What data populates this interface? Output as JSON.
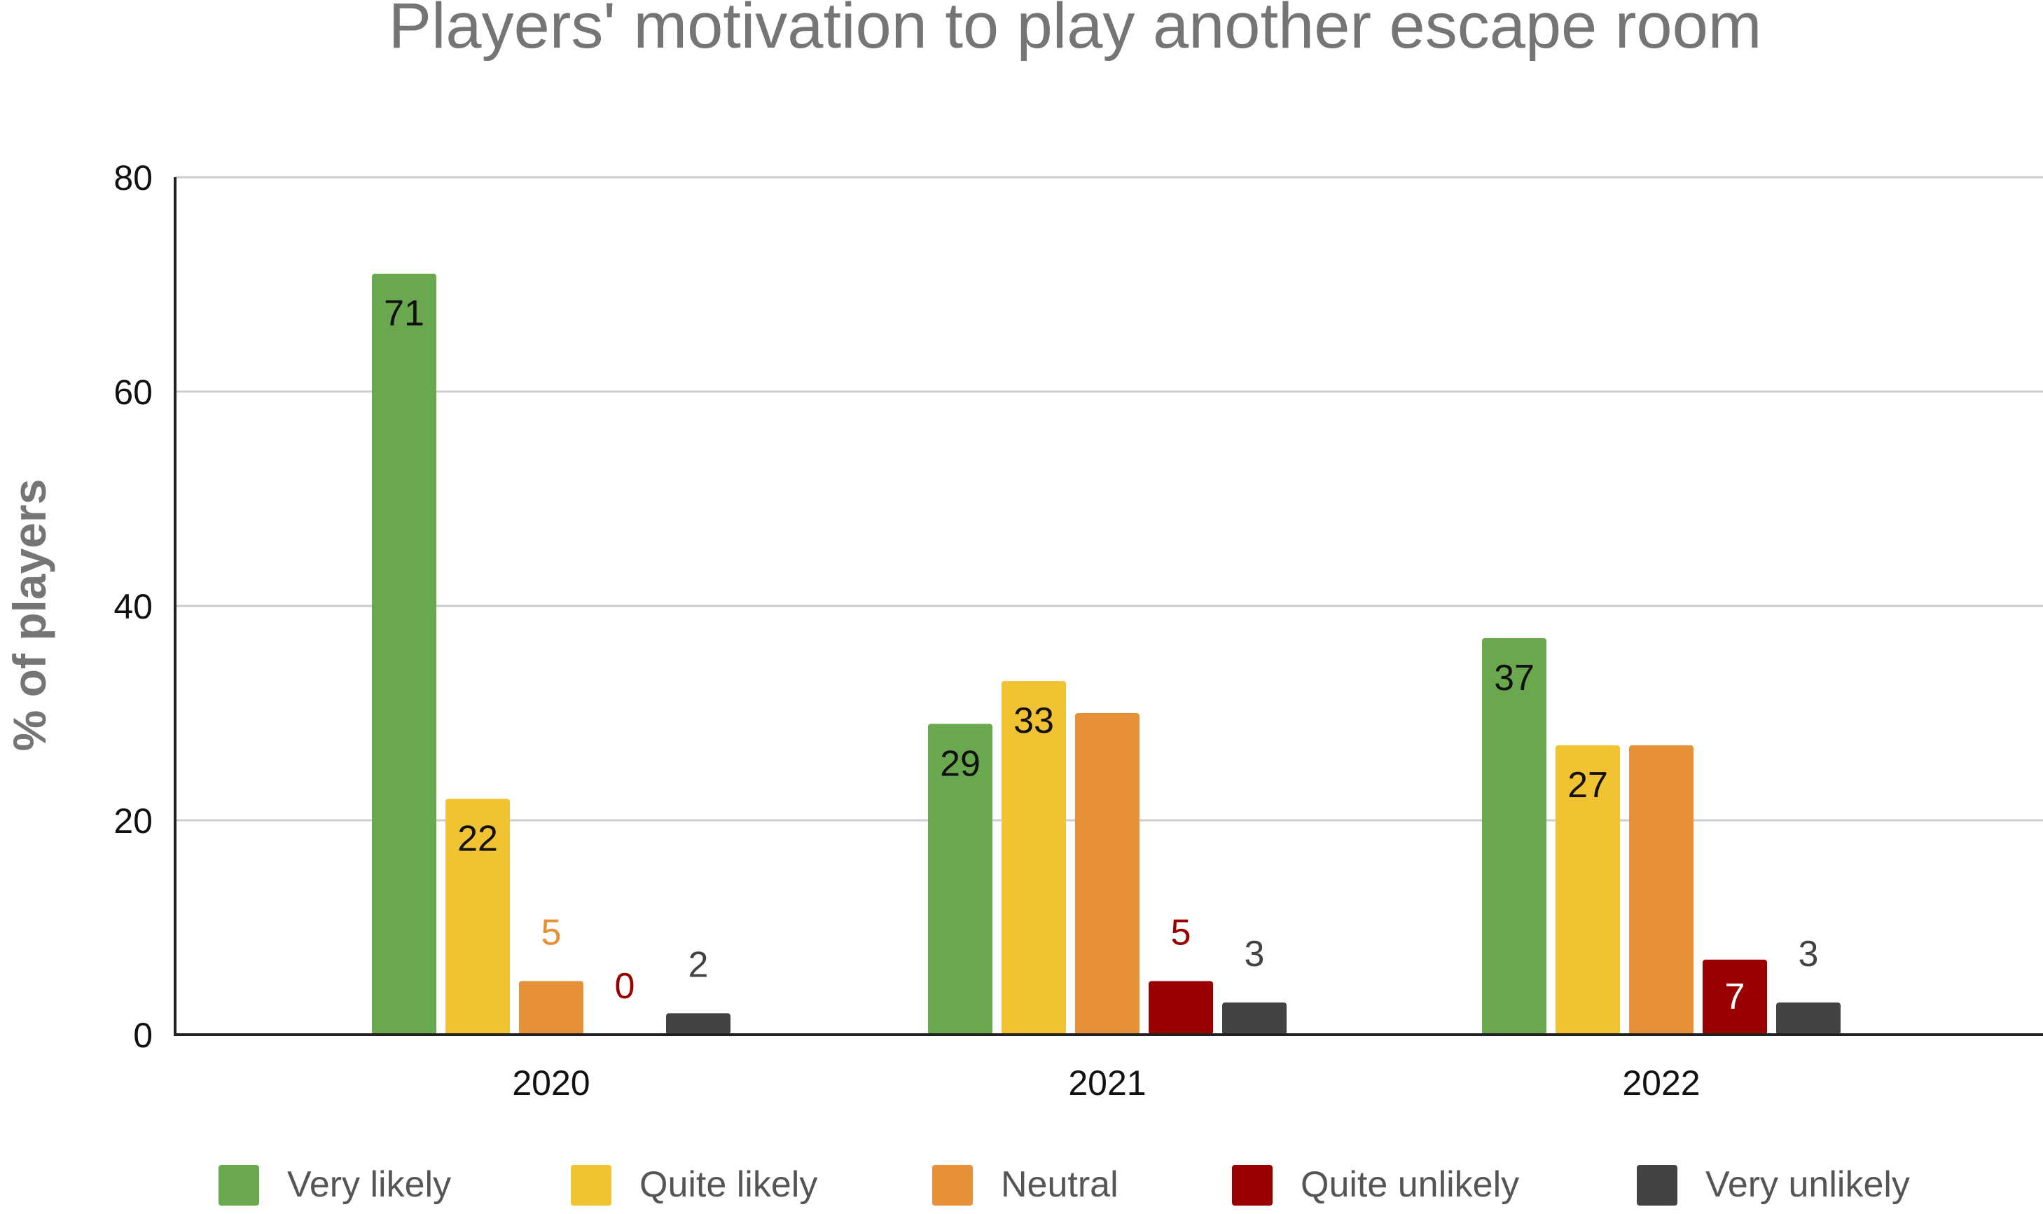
{
  "chart_data": {
    "type": "bar",
    "title": "Players' motivation to play another escape room",
    "xlabel": "",
    "ylabel": "% of players",
    "ylim": [
      0,
      80
    ],
    "yticks": [
      0,
      20,
      40,
      60,
      80
    ],
    "grid": true,
    "legend_position": "bottom",
    "categories": [
      "2020",
      "2021",
      "2022"
    ],
    "series": [
      {
        "name": "Very likely",
        "color": "#6aa84f",
        "label_color": "#111111",
        "label_inside": true,
        "values": [
          71,
          29,
          37
        ]
      },
      {
        "name": "Quite likely",
        "color": "#f1c232",
        "label_color": "#111111",
        "label_inside": true,
        "values": [
          22,
          33,
          27
        ]
      },
      {
        "name": "Neutral",
        "color": "#e69138",
        "label_color": "#e69138",
        "label_inside": [
          false,
          true,
          true
        ],
        "values": [
          5,
          30,
          27
        ]
      },
      {
        "name": "Quite unlikely",
        "color": "#990000",
        "label_color": "#990000",
        "label_inside": [
          false,
          false,
          true
        ],
        "values": [
          0,
          5,
          7
        ]
      },
      {
        "name": "Very unlikely",
        "color": "#434343",
        "label_color": "#434343",
        "label_inside": false,
        "values": [
          2,
          3,
          3
        ]
      }
    ]
  }
}
